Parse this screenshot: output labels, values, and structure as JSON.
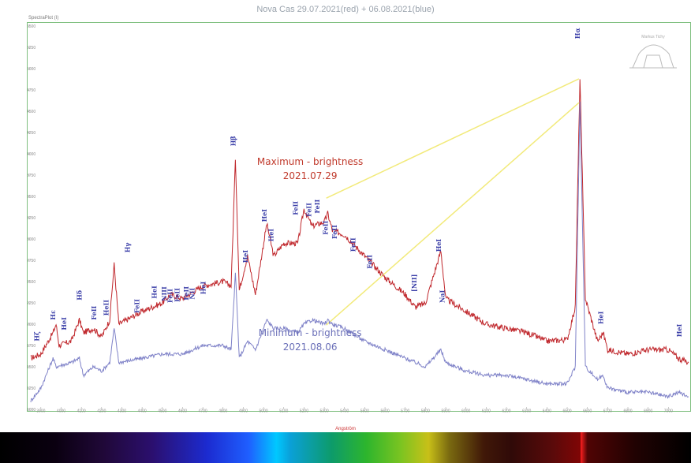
{
  "title": "Nova Cas 29.07.2021(red) + 06.08.2021(blue)",
  "panel_label": "SpectraPlot (I)",
  "logo_text": "Markus Tichy",
  "colors": {
    "max": "#c0282d",
    "min": "#7f82c8",
    "connector": "#f2ea7a",
    "frame": "#7fbf7f",
    "line_labels": "#3b3fa8"
  },
  "chart_data": {
    "type": "line",
    "xlabel": "Angström",
    "ylabel": "",
    "xlim": [
      3850,
      7100
    ],
    "ylim": [
      1000,
      5500
    ],
    "x_ticks": [
      3900,
      4000,
      4100,
      4200,
      4300,
      4400,
      4500,
      4600,
      4700,
      4800,
      4900,
      5000,
      5100,
      5200,
      5300,
      5400,
      5500,
      5600,
      5700,
      5800,
      5900,
      6000,
      6100,
      6200,
      6300,
      6400,
      6500,
      6600,
      6700,
      6800,
      6900,
      7000
    ],
    "y_ticks": [
      1000,
      1250,
      1500,
      1750,
      2000,
      2250,
      2500,
      2750,
      3000,
      3250,
      3500,
      3750,
      4000,
      4250,
      4500,
      4750,
      5000,
      5250,
      5500
    ],
    "grid": false,
    "series": [
      {
        "name": "Maximum - brightness 2021.07.29",
        "color": "#c0282d",
        "points": [
          [
            3850,
            1600
          ],
          [
            3900,
            1650
          ],
          [
            3960,
            1900
          ],
          [
            3975,
            2000
          ],
          [
            3990,
            1750
          ],
          [
            4050,
            1800
          ],
          [
            4090,
            2050
          ],
          [
            4110,
            1900
          ],
          [
            4160,
            1950
          ],
          [
            4200,
            1850
          ],
          [
            4240,
            2050
          ],
          [
            4262,
            2700
          ],
          [
            4285,
            2000
          ],
          [
            4400,
            2150
          ],
          [
            4500,
            2250
          ],
          [
            4540,
            2350
          ],
          [
            4600,
            2300
          ],
          [
            4700,
            2450
          ],
          [
            4800,
            2500
          ],
          [
            4840,
            2450
          ],
          [
            4861,
            3950
          ],
          [
            4880,
            2400
          ],
          [
            4921,
            2800
          ],
          [
            4960,
            2350
          ],
          [
            5016,
            3180
          ],
          [
            5050,
            2800
          ],
          [
            5100,
            2950
          ],
          [
            5169,
            2950
          ],
          [
            5200,
            3350
          ],
          [
            5240,
            3150
          ],
          [
            5300,
            3200
          ],
          [
            5317,
            3300
          ],
          [
            5340,
            3100
          ],
          [
            5400,
            3050
          ],
          [
            5500,
            2800
          ],
          [
            5600,
            2550
          ],
          [
            5700,
            2350
          ],
          [
            5750,
            2200
          ],
          [
            5800,
            2250
          ],
          [
            5876,
            2860
          ],
          [
            5900,
            2300
          ],
          [
            6000,
            2150
          ],
          [
            6100,
            2000
          ],
          [
            6200,
            1950
          ],
          [
            6300,
            1900
          ],
          [
            6400,
            1800
          ],
          [
            6500,
            1820
          ],
          [
            6540,
            2200
          ],
          [
            6563,
            4880
          ],
          [
            6590,
            2300
          ],
          [
            6650,
            1800
          ],
          [
            6678,
            1900
          ],
          [
            6700,
            1700
          ],
          [
            6800,
            1650
          ],
          [
            6900,
            1700
          ],
          [
            7000,
            1700
          ],
          [
            7050,
            1600
          ],
          [
            7100,
            1550
          ]
        ]
      },
      {
        "name": "Minimum - brightness 2021.08.06",
        "color": "#7f82c8",
        "points": [
          [
            3850,
            1100
          ],
          [
            3900,
            1250
          ],
          [
            3960,
            1600
          ],
          [
            3975,
            1500
          ],
          [
            4050,
            1550
          ],
          [
            4090,
            1600
          ],
          [
            4110,
            1400
          ],
          [
            4160,
            1500
          ],
          [
            4200,
            1450
          ],
          [
            4240,
            1550
          ],
          [
            4262,
            1950
          ],
          [
            4285,
            1550
          ],
          [
            4400,
            1600
          ],
          [
            4500,
            1650
          ],
          [
            4600,
            1650
          ],
          [
            4700,
            1750
          ],
          [
            4800,
            1750
          ],
          [
            4840,
            1700
          ],
          [
            4861,
            2600
          ],
          [
            4880,
            1600
          ],
          [
            4921,
            1800
          ],
          [
            4960,
            1700
          ],
          [
            5016,
            2050
          ],
          [
            5050,
            1950
          ],
          [
            5100,
            1950
          ],
          [
            5169,
            1900
          ],
          [
            5200,
            2000
          ],
          [
            5240,
            2050
          ],
          [
            5300,
            2000
          ],
          [
            5317,
            2050
          ],
          [
            5340,
            2000
          ],
          [
            5400,
            1950
          ],
          [
            5500,
            1800
          ],
          [
            5600,
            1700
          ],
          [
            5700,
            1600
          ],
          [
            5750,
            1550
          ],
          [
            5800,
            1500
          ],
          [
            5876,
            1700
          ],
          [
            5900,
            1550
          ],
          [
            6000,
            1450
          ],
          [
            6100,
            1400
          ],
          [
            6200,
            1400
          ],
          [
            6300,
            1350
          ],
          [
            6400,
            1300
          ],
          [
            6500,
            1300
          ],
          [
            6540,
            1500
          ],
          [
            6563,
            4600
          ],
          [
            6590,
            1500
          ],
          [
            6650,
            1350
          ],
          [
            6678,
            1400
          ],
          [
            6700,
            1250
          ],
          [
            6800,
            1200
          ],
          [
            6900,
            1200
          ],
          [
            7000,
            1150
          ],
          [
            7050,
            1200
          ],
          [
            7100,
            1150
          ]
        ]
      }
    ],
    "line_labels": [
      {
        "text": "Hζ",
        "x": 3890,
        "y": 1800
      },
      {
        "text": "Hε",
        "x": 3970,
        "y": 2050
      },
      {
        "text": "HeI",
        "x": 4026,
        "y": 1930
      },
      {
        "text": "Hδ",
        "x": 4102,
        "y": 2280
      },
      {
        "text": "FeII",
        "x": 4173,
        "y": 2050
      },
      {
        "text": "HeII",
        "x": 4233,
        "y": 2100
      },
      {
        "text": "Hγ",
        "x": 4340,
        "y": 2840
      },
      {
        "text": "FeII",
        "x": 4385,
        "y": 2130
      },
      {
        "text": "HeI",
        "x": 4471,
        "y": 2300
      },
      {
        "text": "NIII",
        "x": 4520,
        "y": 2270
      },
      {
        "text": "FeII",
        "x": 4550,
        "y": 2250
      },
      {
        "text": "FeII",
        "x": 4584,
        "y": 2260
      },
      {
        "text": "FeII",
        "x": 4629,
        "y": 2280
      },
      {
        "text": "NII",
        "x": 4658,
        "y": 2290
      },
      {
        "text": "HeI",
        "x": 4713,
        "y": 2350
      },
      {
        "text": "Hβ",
        "x": 4861,
        "y": 4090
      },
      {
        "text": "HeI",
        "x": 4921,
        "y": 2720
      },
      {
        "text": "HeI",
        "x": 5016,
        "y": 3200
      },
      {
        "text": "HeI",
        "x": 5048,
        "y": 2970
      },
      {
        "text": "FeII",
        "x": 5169,
        "y": 3280
      },
      {
        "text": "FeII",
        "x": 5235,
        "y": 3260
      },
      {
        "text": "FeII",
        "x": 5276,
        "y": 3300
      },
      {
        "text": "FeII",
        "x": 5317,
        "y": 3050
      },
      {
        "text": "FeII",
        "x": 5362,
        "y": 3000
      },
      {
        "text": "FeII",
        "x": 5454,
        "y": 2850
      },
      {
        "text": "FeII",
        "x": 5535,
        "y": 2650
      },
      {
        "text": "[NII]",
        "x": 5755,
        "y": 2380
      },
      {
        "text": "HeI",
        "x": 5876,
        "y": 2850
      },
      {
        "text": "NaI",
        "x": 5893,
        "y": 2250
      },
      {
        "text": "Hα",
        "x": 6563,
        "y": 5350
      },
      {
        "text": "HeI",
        "x": 6678,
        "y": 2000
      },
      {
        "text": "HeI",
        "x": 7065,
        "y": 1850
      }
    ],
    "annotations": [
      {
        "text_line1": "Maximum - brightness",
        "text_line2": "2021.07.29",
        "x": 5230,
        "y": 3870,
        "color": "red"
      },
      {
        "text_line1": "Minimum - brightness",
        "text_line2": "2021.08.06",
        "x": 5230,
        "y": 1860,
        "color": "blue"
      }
    ],
    "connectors": [
      {
        "from": [
          5310,
          3480
        ],
        "to": [
          6558,
          4880
        ]
      },
      {
        "from": [
          5310,
          1990
        ],
        "to": [
          6558,
          4600
        ]
      }
    ]
  }
}
